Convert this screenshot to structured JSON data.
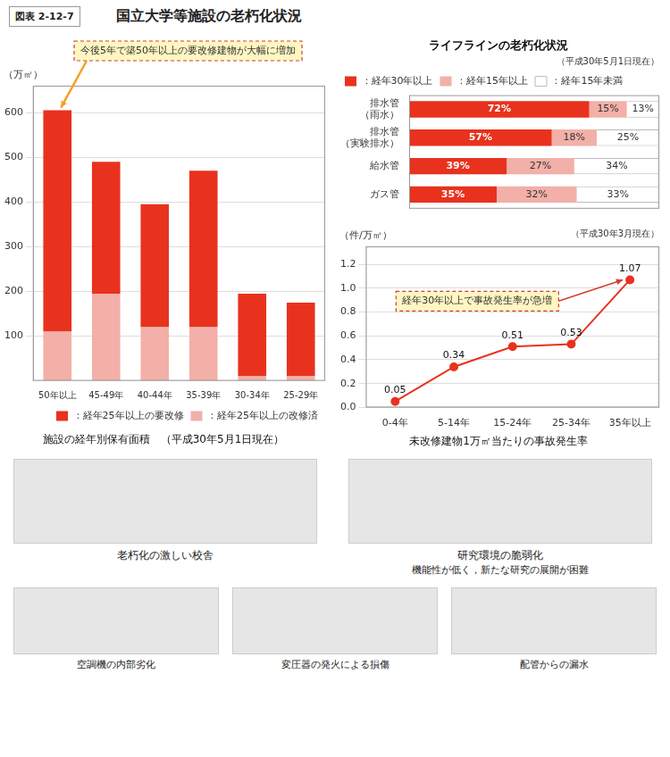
{
  "title": "国立大学等施設の老朽化状況",
  "subtitle": "図表 2-12-7",
  "annotations": [
    "老朽化の激しい校舎",
    "研究環境の脆弱化",
    "機能性が低く，新たな研究の展開が困難",
    "空調機の内部劣化",
    "変圧器の発火による損傷",
    "配管からの漏水"
  ],
  "chart_data": [
    {
      "type": "bar",
      "title": "施設の経年別保有面積　（平成30年5月1日現在）",
      "y_label": "（万㎡）",
      "categories": [
        "50年以上",
        "45-49年",
        "40-44年",
        "35-39年",
        "30-34年",
        "25-29年"
      ],
      "series": [
        {
          "name": "：経年25年以上の改修済",
          "color": "#f2b0a8",
          "values": [
            110,
            195,
            120,
            120,
            10,
            10
          ]
        },
        {
          "name": "：経年25年以上の要改修",
          "color": "#e8321e",
          "values": [
            495,
            295,
            275,
            350,
            185,
            165
          ]
        }
      ],
      "stacked": true,
      "ylim": [
        0,
        660
      ],
      "yticks": [
        100,
        200,
        300,
        400,
        500,
        600
      ],
      "grid": true,
      "legend": "lower right",
      "annotations": [
        "今後5年で築50年以上の要改修建物が大幅に増加"
      ]
    },
    {
      "type": "bar",
      "orientation": "horizontal",
      "stacked": true,
      "title": "ライフラインの老朽化状況",
      "subtitle": "（平成30年5月1日現在）",
      "categories": [
        "排水管（雨水）",
        "排水管（実験排水）",
        "給水管",
        "ガス管"
      ],
      "series": [
        {
          "name": "：経年30年以上",
          "color": "#e8321e",
          "values": [
            72,
            57,
            39,
            35
          ],
          "value_labels": [
            "72%",
            "57%",
            "39%",
            "35%"
          ]
        },
        {
          "name": "：経年15年以上",
          "color": "#f2b0a8",
          "values": [
            15,
            18,
            27,
            32
          ],
          "value_labels": [
            "15%",
            "18%",
            "27%",
            "32%"
          ]
        },
        {
          "name": "：経年15年未満",
          "color": "#ffffff",
          "values": [
            13,
            25,
            34,
            33
          ],
          "value_labels": [
            "13%",
            "25%",
            "34%",
            "33%"
          ]
        }
      ],
      "xlim": [
        0,
        100
      ],
      "data_labels": true,
      "tick_labels": "y",
      "grid": false,
      "legend": "upper left"
    },
    {
      "type": "line",
      "title": "未改修建物1万㎡当たりの事故発生率",
      "subtitle": "（平成30年3月現在）",
      "y_label": "（件/万㎡）",
      "categories": [
        "0-4年",
        "5-14年",
        "15-24年",
        "25-34年",
        "35年以上"
      ],
      "values": [
        0.05,
        0.34,
        0.51,
        0.53,
        1.07
      ],
      "color": "#e8321e",
      "marker": "circle",
      "data_labels": true,
      "ylim": [
        0,
        1.35
      ],
      "yticks": [
        {
          "value": 0,
          "label": "0.0"
        },
        0.2,
        0.4,
        0.6,
        0.8,
        {
          "value": 1,
          "label": "1.0"
        },
        1.2
      ],
      "grid": true,
      "annotations": [
        "経年30年以上で事故発生率が急増"
      ]
    }
  ]
}
